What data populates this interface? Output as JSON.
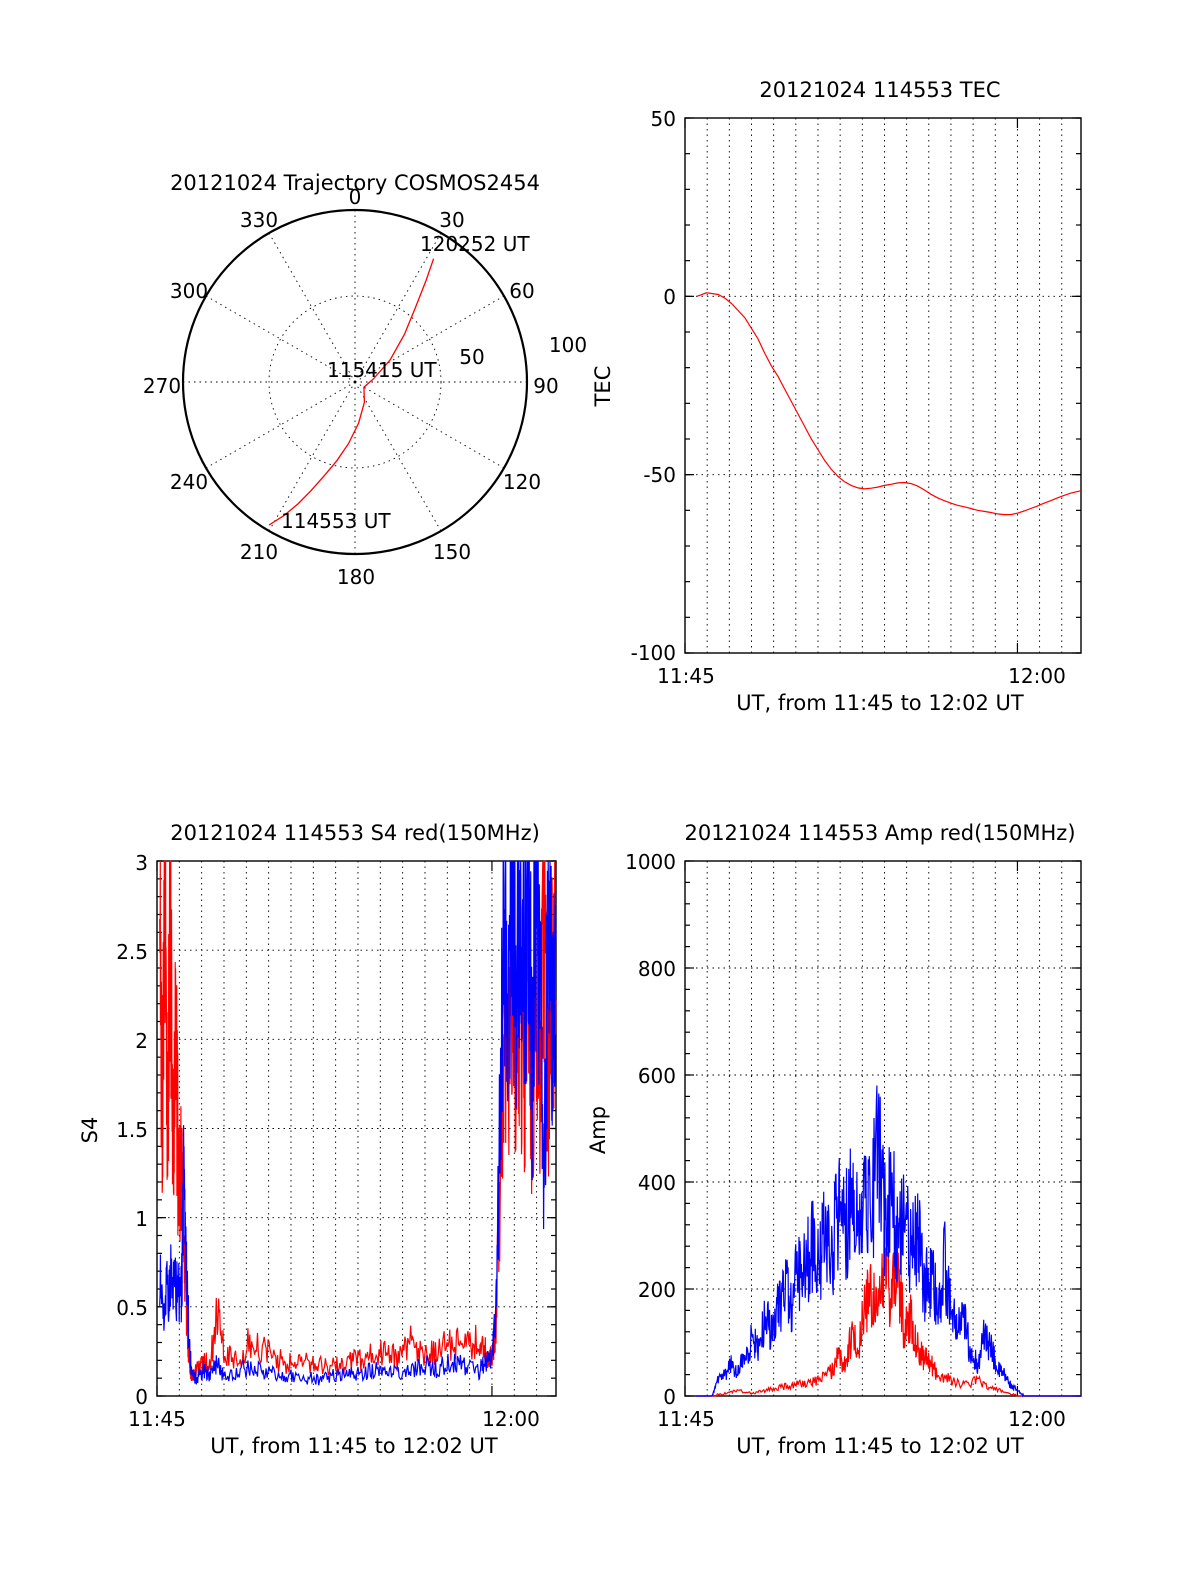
{
  "colors": {
    "red": "#ff0000",
    "blue": "#0000ff",
    "axis": "#000000"
  },
  "chart_data": [
    {
      "type": "polar",
      "title": "20121024 Trajectory COSMOS2454",
      "angle_labels": [
        "0",
        "30",
        "60",
        "90",
        "120",
        "150",
        "180",
        "210",
        "240",
        "270",
        "300",
        "330"
      ],
      "radial_labels": [
        "50",
        "100"
      ],
      "radial_range": [
        0,
        100
      ],
      "grid": true,
      "annotations": [
        "120252 UT",
        "115415 UT",
        "114553 UT"
      ],
      "series": [
        {
          "color": "#ff0000",
          "azimuth_deg": [
            211,
            208,
            205,
            202,
            198,
            193,
            186,
            175,
            155,
            120,
            80,
            58,
            46,
            39,
            35,
            32.5
          ],
          "distance": [
            97,
            88,
            78,
            68,
            57,
            47,
            36,
            24,
            13,
            6,
            11,
            24,
            40,
            56,
            72,
            85
          ]
        }
      ]
    },
    {
      "type": "line",
      "title": "20121024 114553 TEC",
      "xlabel": "UT, from 11:45 to 12:02 UT",
      "ylabel": "TEC",
      "xlim": [
        11.75,
        12.0478
      ],
      "ylim": [
        -100,
        50
      ],
      "xtick_labels": [
        "11:45",
        "12:00"
      ],
      "ytick_labels": [
        "-100",
        "-50",
        "0",
        "50"
      ],
      "grid": true,
      "series": [
        {
          "color": "#ff0000",
          "x": [
            11.7588,
            11.762,
            11.766,
            11.77,
            11.775,
            11.78,
            11.785,
            11.79,
            11.795,
            11.8,
            11.805,
            11.81,
            11.815,
            11.82,
            11.825,
            11.83,
            11.835,
            11.84,
            11.845,
            11.85,
            11.855,
            11.86,
            11.865,
            11.87,
            11.875,
            11.88,
            11.885,
            11.89,
            11.895,
            11.9,
            11.905,
            11.91,
            11.915,
            11.92,
            11.925,
            11.93,
            11.935,
            11.94,
            11.945,
            11.95,
            11.955,
            11.96,
            11.965,
            11.97,
            11.975,
            11.98,
            11.985,
            11.99,
            11.995,
            12.0,
            12.005,
            12.01,
            12.015,
            12.02,
            12.025,
            12.03,
            12.035,
            12.04,
            12.0478
          ],
          "y": [
            0,
            0.4,
            1,
            0.8,
            0.5,
            -0.5,
            -2,
            -4,
            -6,
            -9,
            -12,
            -16,
            -19.5,
            -22.5,
            -26,
            -29.5,
            -33,
            -36.5,
            -40,
            -43,
            -46,
            -48.5,
            -50.5,
            -52,
            -53,
            -53.7,
            -54,
            -53.8,
            -53.5,
            -53,
            -52.7,
            -52.3,
            -52.2,
            -52.5,
            -53.2,
            -54.3,
            -55.5,
            -56.5,
            -57.3,
            -58,
            -58.6,
            -59,
            -59.5,
            -60,
            -60.3,
            -60.6,
            -61,
            -61.2,
            -61.2,
            -60.8,
            -60.2,
            -59.5,
            -58.8,
            -58,
            -57.3,
            -56.5,
            -55.8,
            -55.2,
            -54.5
          ]
        }
      ]
    },
    {
      "type": "line",
      "title": "20121024 114553 S4 red(150MHz)",
      "xlabel": "UT, from 11:45 to 12:02 UT",
      "ylabel": "S4",
      "xlim": [
        11.75,
        12.0478
      ],
      "ylim": [
        0,
        3
      ],
      "xtick_labels": [
        "11:45",
        "12:00"
      ],
      "ytick_labels": [
        "0",
        "0.5",
        "1",
        "1.5",
        "2",
        "2.5",
        "3"
      ],
      "grid": true,
      "series": [
        {
          "color": "#ff0000",
          "x": [
            11.752,
            11.754,
            11.756,
            11.758,
            11.76,
            11.762,
            11.764,
            11.766,
            11.768,
            11.77,
            11.772,
            11.774,
            11.776,
            11.78,
            11.785,
            11.79,
            11.795,
            11.8,
            11.81,
            11.82,
            11.83,
            11.84,
            11.85,
            11.86,
            11.87,
            11.88,
            11.89,
            11.9,
            11.91,
            11.92,
            11.93,
            11.94,
            11.95,
            11.96,
            11.97,
            11.98,
            11.99,
            11.995,
            12.0,
            12.003,
            12.006,
            12.009,
            12.012,
            12.015,
            12.018,
            12.021,
            12.024,
            12.027,
            12.03,
            12.033,
            12.036,
            12.039,
            12.042,
            12.045,
            12.0478
          ],
          "y": [
            3.0,
            1.5,
            2.7,
            1.6,
            2.5,
            1.4,
            2.0,
            1.2,
            1.3,
            0.9,
            0.5,
            0.2,
            0.1,
            0.15,
            0.18,
            0.2,
            0.45,
            0.25,
            0.22,
            0.3,
            0.25,
            0.2,
            0.18,
            0.2,
            0.17,
            0.16,
            0.18,
            0.2,
            0.22,
            0.25,
            0.2,
            0.3,
            0.22,
            0.25,
            0.3,
            0.28,
            0.3,
            0.25,
            0.2,
            0.4,
            1.2,
            2.2,
            1.8,
            2.6,
            1.6,
            2.4,
            1.5,
            2.6,
            1.4,
            2.5,
            1.7,
            2.8,
            1.6,
            2.5,
            2.2
          ]
        },
        {
          "color": "#0000ff",
          "x": [
            11.752,
            11.756,
            11.76,
            11.764,
            11.768,
            11.77,
            11.772,
            11.774,
            11.776,
            11.78,
            11.785,
            11.79,
            11.795,
            11.8,
            11.81,
            11.82,
            11.83,
            11.84,
            11.85,
            11.86,
            11.87,
            11.88,
            11.89,
            11.9,
            11.91,
            11.92,
            11.93,
            11.94,
            11.95,
            11.96,
            11.97,
            11.98,
            11.99,
            11.995,
            12.0,
            12.003,
            12.006,
            12.009,
            12.012,
            12.015,
            12.018,
            12.021,
            12.024,
            12.027,
            12.03,
            12.033,
            12.036,
            12.039,
            12.042,
            12.045,
            12.0478
          ],
          "y": [
            0.6,
            0.55,
            0.65,
            0.6,
            0.55,
            1.2,
            0.8,
            0.3,
            0.12,
            0.1,
            0.15,
            0.12,
            0.2,
            0.1,
            0.14,
            0.16,
            0.13,
            0.12,
            0.11,
            0.1,
            0.1,
            0.11,
            0.12,
            0.13,
            0.14,
            0.15,
            0.12,
            0.14,
            0.18,
            0.15,
            0.2,
            0.16,
            0.14,
            0.18,
            0.2,
            0.5,
            1.5,
            2.8,
            2.2,
            3.0,
            2.0,
            3.0,
            2.4,
            2.9,
            1.8,
            3.0,
            2.5,
            1.2,
            2.9,
            2.0,
            2.6
          ]
        }
      ]
    },
    {
      "type": "line",
      "title": "20121024 114553 Amp red(150MHz)",
      "xlabel": "UT, from 11:45 to 12:02 UT",
      "ylabel": "Amp",
      "xlim": [
        11.75,
        12.0478
      ],
      "ylim": [
        0,
        1000
      ],
      "xtick_labels": [
        "11:45",
        "12:00"
      ],
      "ytick_labels": [
        "0",
        "200",
        "400",
        "600",
        "800",
        "1000"
      ],
      "grid": true,
      "series": [
        {
          "color": "#ff0000",
          "x": [
            11.758,
            11.77,
            11.78,
            11.79,
            11.8,
            11.81,
            11.82,
            11.83,
            11.84,
            11.85,
            11.86,
            11.865,
            11.87,
            11.875,
            11.88,
            11.885,
            11.89,
            11.895,
            11.9,
            11.905,
            11.91,
            11.915,
            11.92,
            11.925,
            11.93,
            11.935,
            11.94,
            11.95,
            11.96,
            11.97,
            11.98,
            11.99,
            12.0,
            12.0478
          ],
          "y": [
            0,
            0,
            5,
            10,
            5,
            10,
            15,
            20,
            25,
            30,
            45,
            80,
            60,
            110,
            90,
            160,
            200,
            140,
            260,
            180,
            240,
            120,
            150,
            90,
            70,
            60,
            40,
            30,
            20,
            30,
            15,
            8,
            0,
            0
          ]
        },
        {
          "color": "#0000ff",
          "x": [
            11.758,
            11.77,
            11.775,
            11.78,
            11.785,
            11.79,
            11.795,
            11.8,
            11.805,
            11.81,
            11.815,
            11.82,
            11.825,
            11.83,
            11.835,
            11.84,
            11.845,
            11.85,
            11.855,
            11.86,
            11.865,
            11.87,
            11.875,
            11.88,
            11.885,
            11.89,
            11.895,
            11.9,
            11.905,
            11.91,
            11.915,
            11.92,
            11.925,
            11.93,
            11.935,
            11.94,
            11.945,
            11.95,
            11.955,
            11.96,
            11.965,
            11.97,
            11.975,
            11.98,
            11.985,
            11.99,
            11.995,
            12.0,
            12.005,
            12.0478
          ],
          "y": [
            0,
            0,
            30,
            40,
            60,
            45,
            80,
            100,
            90,
            140,
            130,
            160,
            200,
            180,
            230,
            250,
            280,
            240,
            300,
            260,
            350,
            300,
            380,
            310,
            420,
            350,
            480,
            330,
            400,
            280,
            380,
            260,
            300,
            200,
            220,
            170,
            250,
            160,
            120,
            140,
            80,
            60,
            110,
            90,
            50,
            40,
            20,
            10,
            0,
            0
          ]
        }
      ]
    }
  ]
}
